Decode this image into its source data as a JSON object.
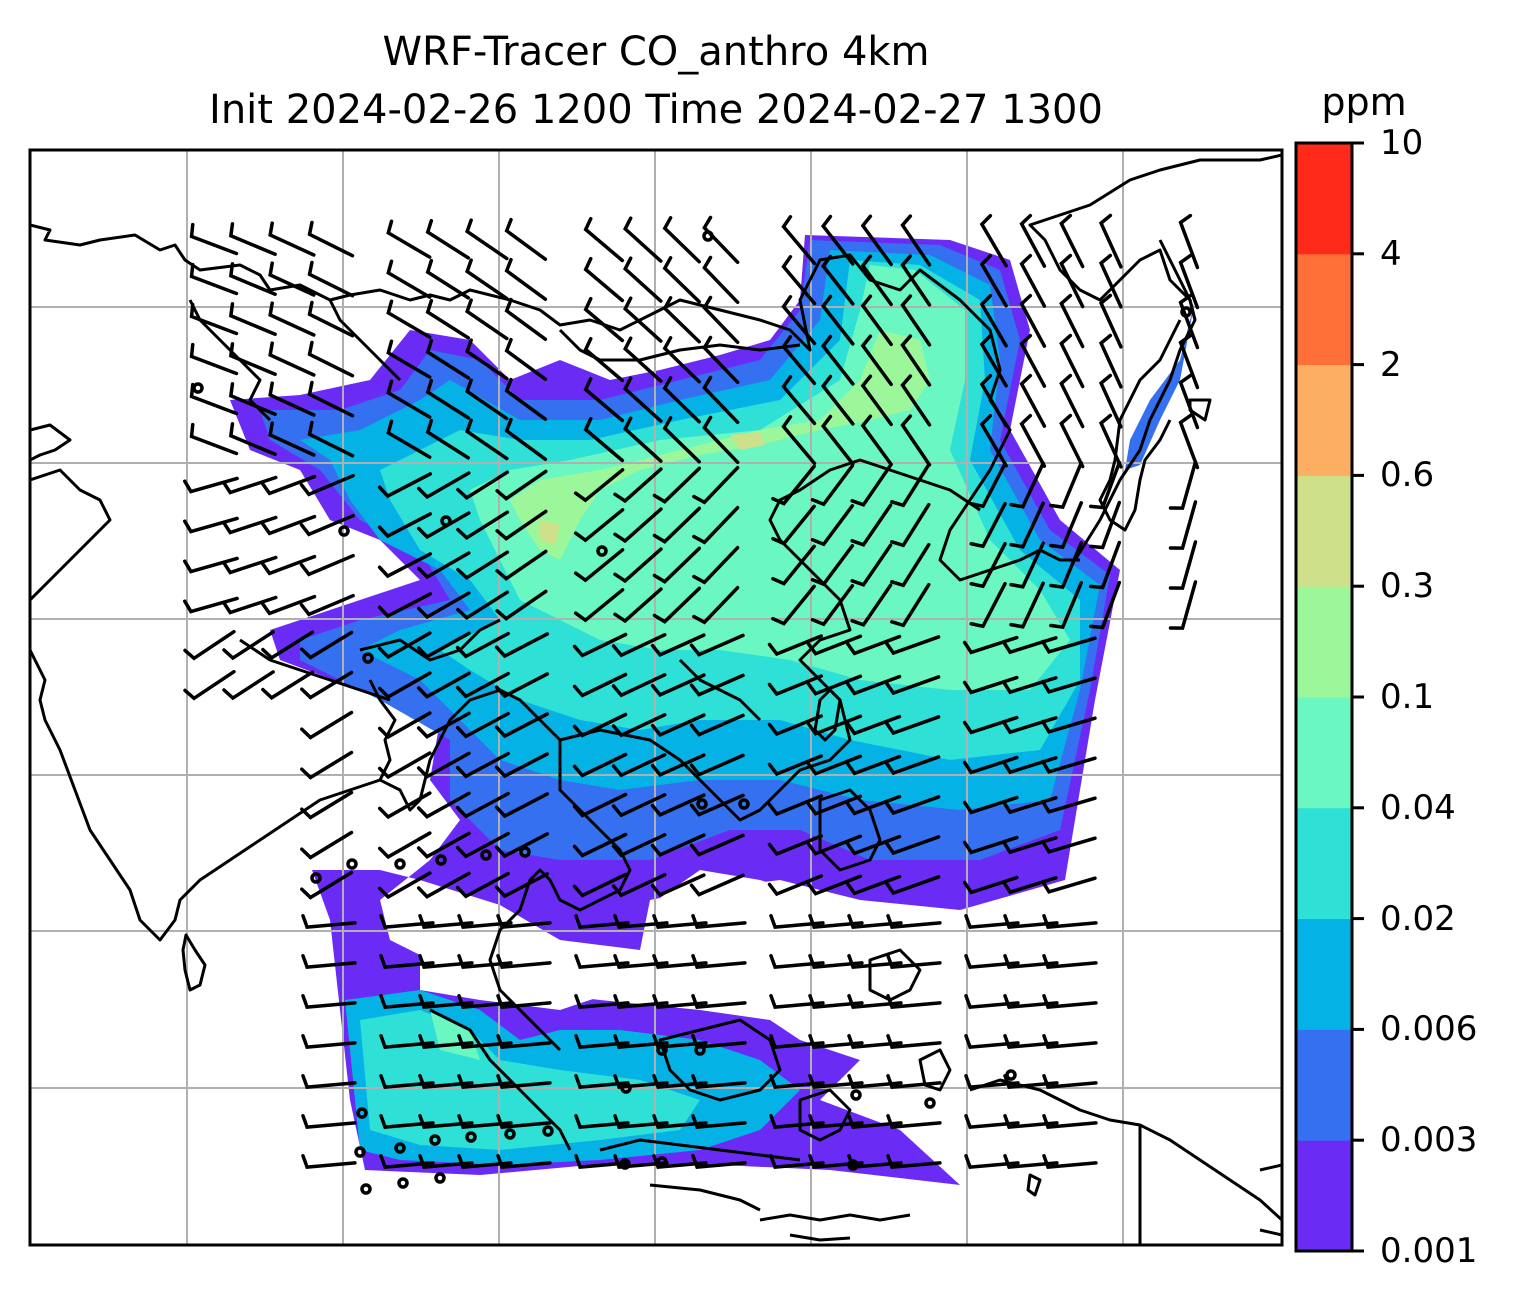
{
  "title": {
    "line1": "WRF-Tracer CO_anthro 4km",
    "line2": "Init 2024-02-26 1200 Time 2024-02-27 1300"
  },
  "colorbar": {
    "unit": "ppm",
    "levels": [
      "0.001",
      "0.003",
      "0.006",
      "0.02",
      "0.04",
      "0.1",
      "0.3",
      "0.6",
      "2",
      "4",
      "10"
    ],
    "colors": [
      "#6a2bf5",
      "#3470f0",
      "#05b2e6",
      "#2ee0d5",
      "#6af7c2",
      "#9cf79a",
      "#cfe08a",
      "#fcae62",
      "#ff7038",
      "#ff2a1a"
    ]
  },
  "map": {
    "gridlines": true,
    "features": [
      "coastlines",
      "country-borders",
      "wind-barbs",
      "co-concentration-field"
    ]
  }
}
